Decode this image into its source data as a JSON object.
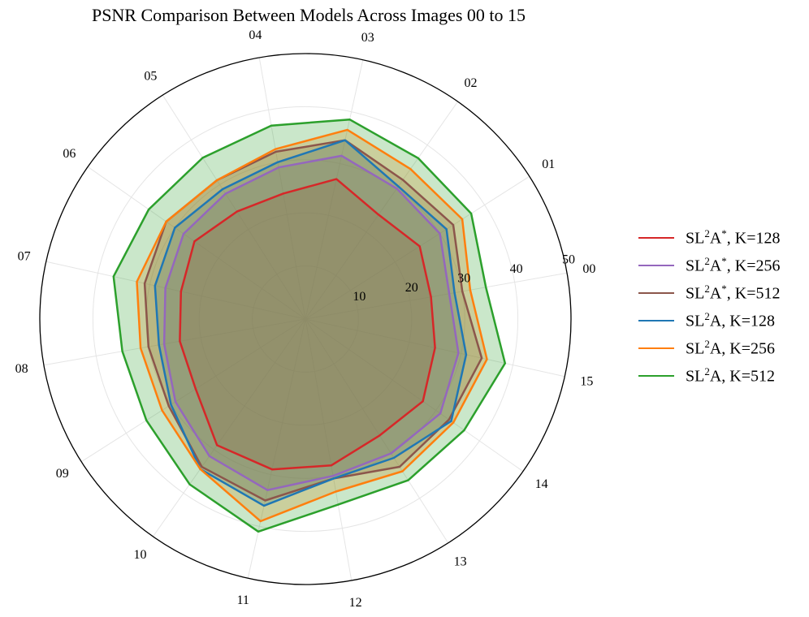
{
  "chart_data": {
    "type": "radar",
    "title": "PSNR Comparison Between Models Across Images 00 to 15",
    "categories": [
      "00",
      "01",
      "02",
      "03",
      "04",
      "05",
      "06",
      "07",
      "08",
      "09",
      "10",
      "11",
      "12",
      "13",
      "14",
      "15"
    ],
    "radial_ticks": [
      "10",
      "20",
      "30",
      "40",
      "50"
    ],
    "rlim": [
      0,
      50
    ],
    "grid": true,
    "legend_position": "right",
    "series": [
      {
        "name": "SL²A*, K=128",
        "base": "SL",
        "sup1": "2",
        "mid": "A",
        "sup2": "*",
        "tail": ", K=128",
        "color": "#d62728",
        "values": [
          24,
          25.5,
          24,
          27,
          24,
          24,
          25.5,
          24,
          24,
          24.5,
          29,
          29,
          28,
          26,
          27,
          25
        ]
      },
      {
        "name": "SL²A*, K=256",
        "base": "SL",
        "sup1": "2",
        "mid": "A",
        "sup2": "*",
        "tail": ", K=256",
        "color": "#9467bd",
        "values": [
          27.5,
          30,
          30,
          31.5,
          29,
          28,
          28,
          27,
          27,
          29,
          31.5,
          33,
          30,
          30,
          31,
          29.5
        ]
      },
      {
        "name": "SL²A*, K=512",
        "base": "SL",
        "sup1": "2",
        "mid": "A",
        "sup2": "*",
        "tail": ", K=512",
        "color": "#8c564b",
        "values": [
          30,
          33,
          32,
          34.5,
          32,
          31,
          32,
          31,
          30,
          30.5,
          34,
          35,
          30.5,
          33,
          33,
          34
        ]
      },
      {
        "name": "SL²A, K=128",
        "base": "SL",
        "sup1": "2",
        "mid": "A",
        "sup2": "",
        "tail": ", K=128",
        "color": "#1f77b4",
        "values": [
          28.5,
          31.5,
          30.5,
          34.5,
          30,
          29,
          30,
          29,
          28,
          30,
          34.5,
          36,
          30.5,
          31,
          33.5,
          31
        ]
      },
      {
        "name": "SL²A, K=256",
        "base": "SL",
        "sup1": "2",
        "mid": "A",
        "sup2": "",
        "tail": ", K=256",
        "color": "#ff7f0e",
        "values": [
          31.5,
          35,
          34.5,
          36.5,
          32.5,
          31,
          32,
          32.5,
          31.5,
          32,
          34.5,
          39,
          33,
          34,
          34,
          35
        ]
      },
      {
        "name": "SL²A, K=512",
        "base": "SL",
        "sup1": "2",
        "mid": "A",
        "sup2": "",
        "tail": ", K=512",
        "color": "#2ca02c",
        "values": [
          34.5,
          37,
          37,
          38.5,
          37,
          36,
          36,
          37,
          35,
          35.5,
          38,
          41,
          35.5,
          36,
          36.5,
          38.5
        ]
      }
    ]
  }
}
